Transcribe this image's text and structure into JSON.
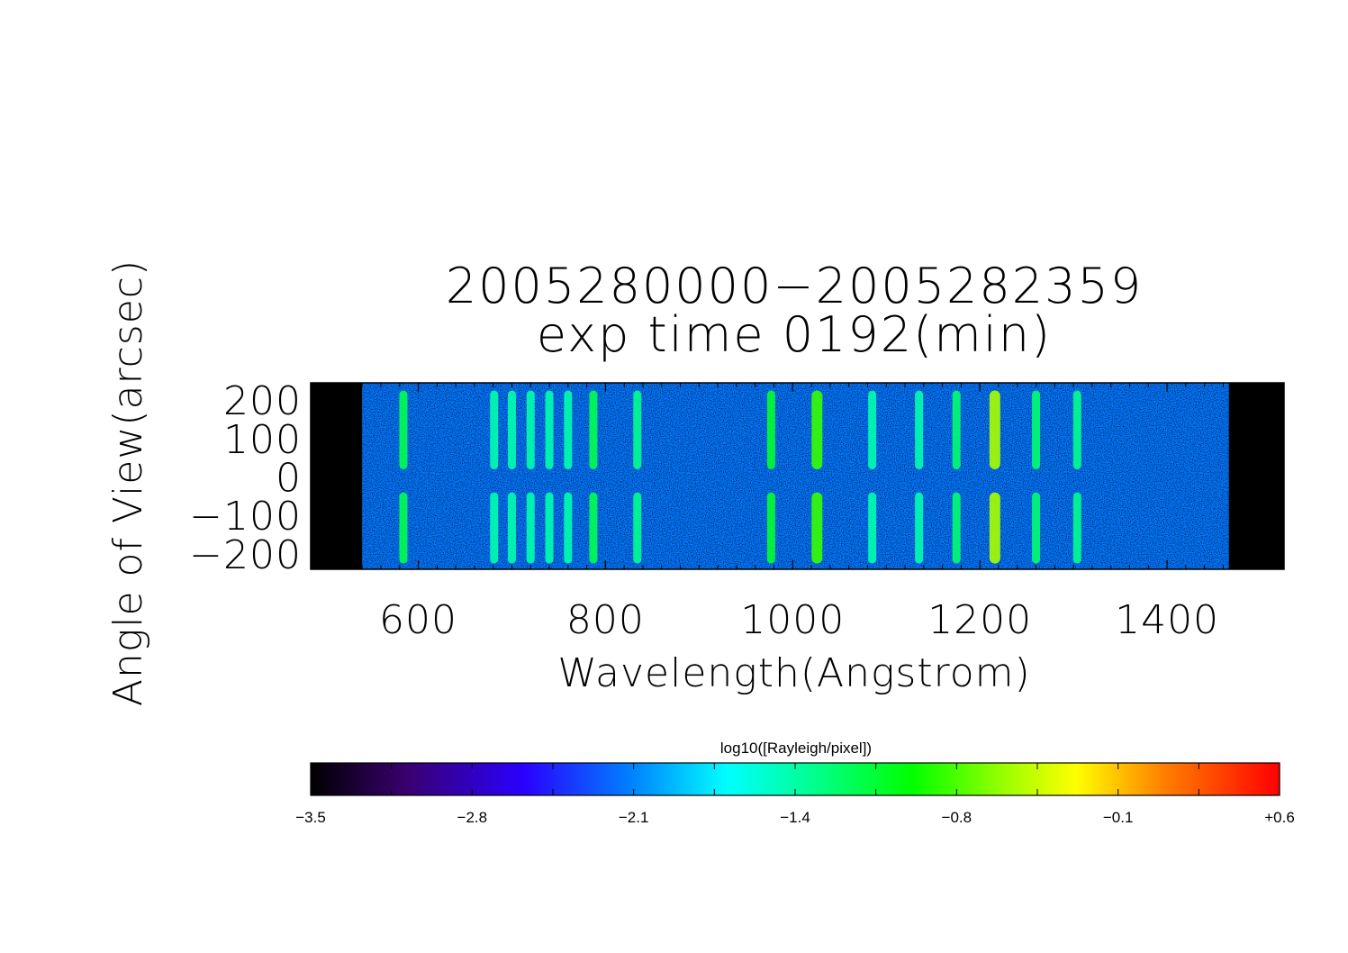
{
  "chart_data": {
    "type": "heatmap",
    "title": "2005280000−2005282359",
    "subtitle": "exp time 0192(min)",
    "xlabel": "Wavelength(Angstrom)",
    "ylabel": "Angle of View(arcsec)",
    "xlim": [
      485,
      1525
    ],
    "ylim": [
      -240,
      245
    ],
    "x_ticks": [
      "600",
      "800",
      "1000",
      "1200",
      "1400"
    ],
    "x_tick_values": [
      600,
      800,
      1000,
      1200,
      1400
    ],
    "y_ticks": [
      "200",
      "100",
      "0",
      "−100",
      "−200"
    ],
    "y_tick_values": [
      200,
      100,
      0,
      -100,
      -200
    ],
    "data_extent_x": [
      540,
      1466
    ],
    "background_level": -2.3,
    "emission_lines": [
      {
        "wavelength": 584,
        "level": -1.3
      },
      {
        "wavelength": 681,
        "level": -1.6
      },
      {
        "wavelength": 700,
        "level": -1.6
      },
      {
        "wavelength": 720,
        "level": -1.6
      },
      {
        "wavelength": 740,
        "level": -1.6
      },
      {
        "wavelength": 760,
        "level": -1.6
      },
      {
        "wavelength": 787,
        "level": -1.3
      },
      {
        "wavelength": 834,
        "level": -1.5
      },
      {
        "wavelength": 977,
        "level": -1.2
      },
      {
        "wavelength": 1026,
        "level": -0.9
      },
      {
        "wavelength": 1085,
        "level": -1.6
      },
      {
        "wavelength": 1135,
        "level": -1.6
      },
      {
        "wavelength": 1175,
        "level": -1.4
      },
      {
        "wavelength": 1216,
        "level": -0.6
      },
      {
        "wavelength": 1260,
        "level": -1.4
      },
      {
        "wavelength": 1304,
        "level": -1.5
      }
    ],
    "colorbar": {
      "label": "log10([Rayleigh/pixel])",
      "range": [
        -3.5,
        0.6
      ],
      "tick_labels": [
        "−3.5",
        "−2.8",
        "−2.1",
        "−1.4",
        "−0.8",
        "−0.1",
        "+0.6"
      ],
      "colors": [
        "#000000",
        "#3a0070",
        "#2a00ff",
        "#0080ff",
        "#00ffff",
        "#00ff80",
        "#00ff00",
        "#a0ff00",
        "#ffff00",
        "#ff8000",
        "#ff0000"
      ]
    }
  }
}
